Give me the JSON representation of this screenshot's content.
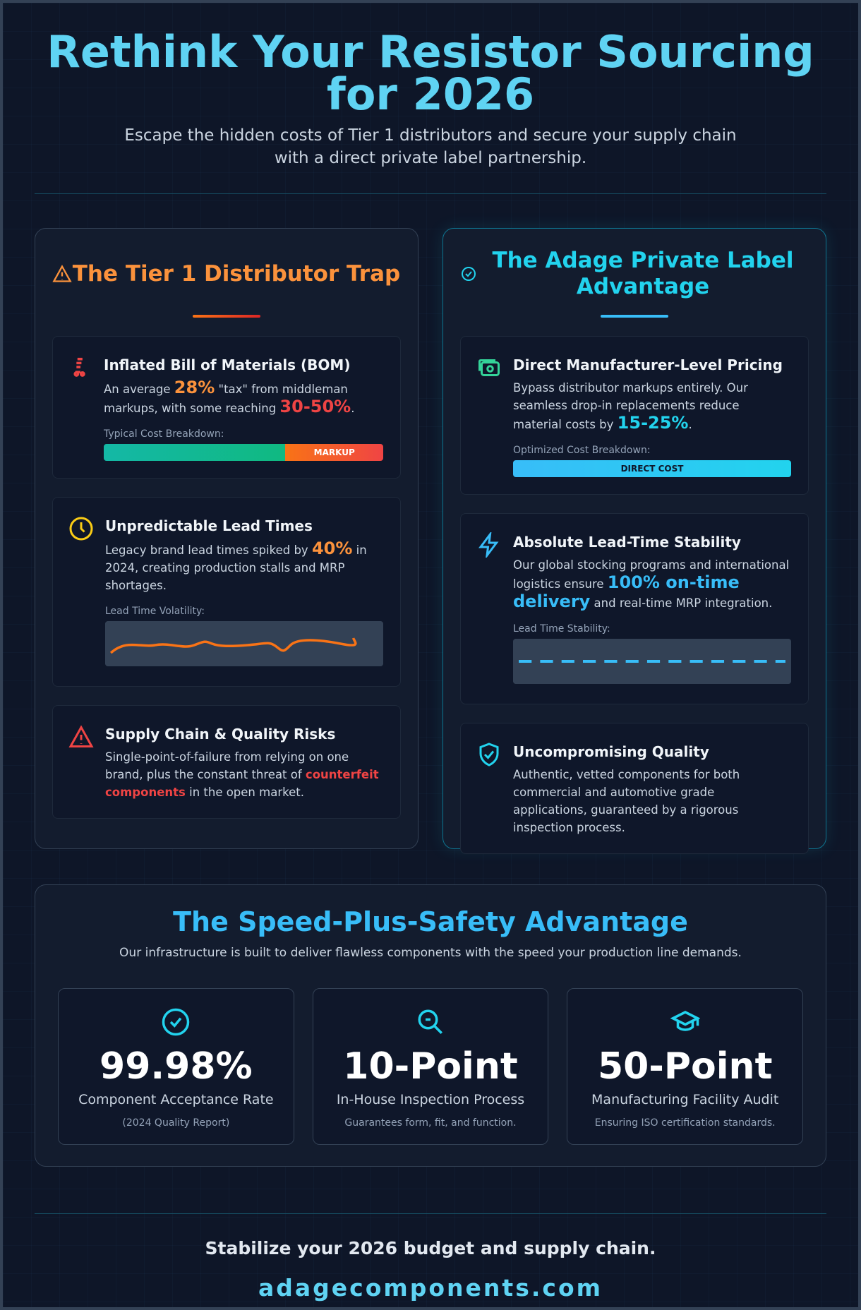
{
  "header": {
    "title": "Rethink Your Resistor Sourcing for 2026",
    "subtitle": "Escape the hidden costs of Tier 1 distributors and secure your supply chain with a direct private label partnership."
  },
  "panels": [
    {
      "title": "The Tier 1 Distributor Trap",
      "cards": [
        {
          "title": "Inflated Bill of Materials (BOM)",
          "text": [
            "An average ",
            "28%",
            " \"tax\" from middleman markups, with some reaching ",
            "30-50%",
            "."
          ],
          "chart_label": "Typical Cost Breakdown:",
          "bar_label": "MARKUP"
        },
        {
          "title": "Unpredictable Lead Times",
          "text": [
            "Legacy brand lead times spiked by ",
            "40%",
            " in 2024, creating production stalls and MRP shortages."
          ],
          "chart_label": "Lead Time Volatility:"
        },
        {
          "title": "Supply Chain & Quality Risks",
          "text": [
            "Single-point-of-failure from relying on one brand, plus the constant threat of ",
            "counterfeit components",
            " in the open market."
          ]
        }
      ]
    },
    {
      "title": "The Adage Private Label Advantage",
      "cards": [
        {
          "title": "Direct Manufacturer-Level Pricing",
          "text": [
            "Bypass distributor markups entirely. Our seamless drop-in replacements reduce material costs by ",
            "15-25%",
            "."
          ],
          "chart_label": "Optimized Cost Breakdown:",
          "bar_label": "DIRECT COST"
        },
        {
          "title": "Absolute Lead-Time Stability",
          "text": [
            "Our global stocking programs and international logistics ensure ",
            "100% on-time delivery",
            " and real-time MRP integration."
          ],
          "chart_label": "Lead Time Stability:"
        },
        {
          "title": "Uncompromising Quality",
          "text": [
            "Authentic, vetted components for both commercial and automotive grade applications, guaranteed by a rigorous inspection process."
          ]
        }
      ]
    }
  ],
  "stats": {
    "title": "The Speed-Plus-Safety Advantage",
    "subtitle": "Our infrastructure is built to deliver flawless components with the speed your production line demands.",
    "items": [
      {
        "value": "99.98%",
        "label": "Component Acceptance Rate",
        "note": "(2024 Quality Report)"
      },
      {
        "value": "10-Point",
        "label": "In-House Inspection Process",
        "note": "Guarantees form, fit, and function."
      },
      {
        "value": "50-Point",
        "label": "Manufacturing Facility Audit",
        "note": "Ensuring ISO certification standards."
      }
    ]
  },
  "footer": {
    "tagline": "Stabilize your 2026 budget and supply chain.",
    "url": "adagecomponents.com"
  }
}
